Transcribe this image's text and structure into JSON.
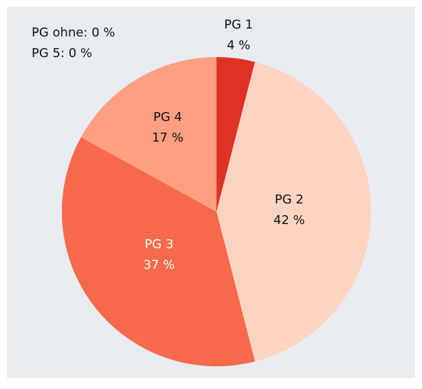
{
  "chart_data": {
    "type": "pie",
    "categories": [
      "PG 1",
      "PG 2",
      "PG 3",
      "PG 4"
    ],
    "values": [
      4,
      42,
      37,
      17
    ],
    "value_labels": [
      "4 %",
      "42 %",
      "37 %",
      "17 %"
    ],
    "colors": [
      "#e03224",
      "#ffd3c2",
      "#f66a4b",
      "#fd9f80"
    ],
    "annotations": [
      "PG ohne: 0 %",
      "PG 5: 0 %"
    ]
  }
}
